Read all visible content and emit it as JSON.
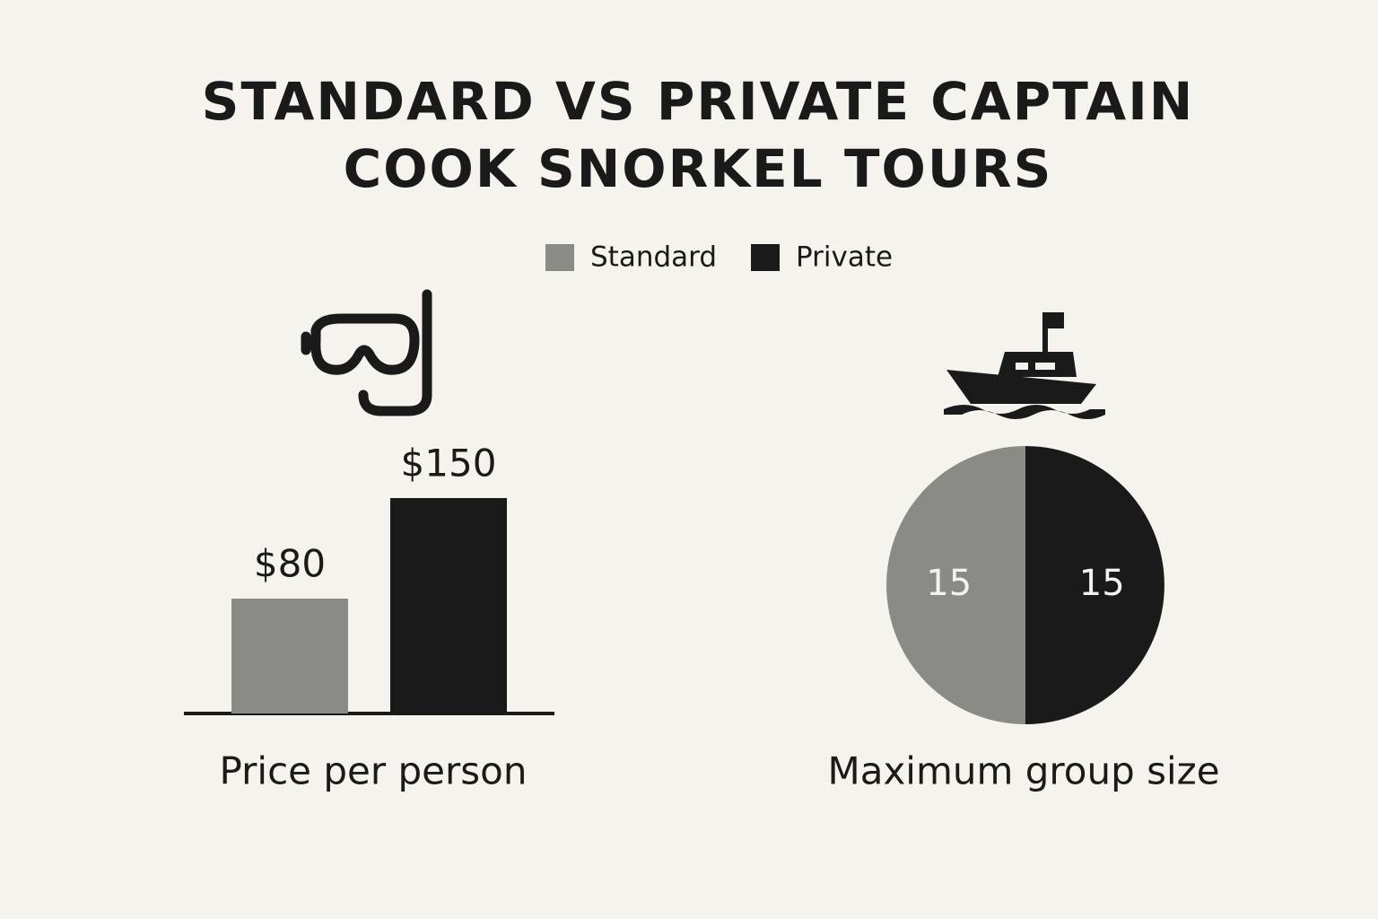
{
  "title_lines": [
    "STANDARD VS PRIVATE CAPTAIN",
    "COOK SNORKEL TOURS"
  ],
  "chart_data": [
    {
      "type": "bar",
      "xlabel": "Price per person",
      "series": [
        {
          "name": "Standard",
          "color": "#8a8a87",
          "values": [
            80
          ],
          "value_labels": [
            "$80"
          ]
        },
        {
          "name": "Private",
          "color": "#1a1a1a",
          "values": [
            150
          ],
          "value_labels": [
            "$150"
          ]
        }
      ]
    },
    {
      "type": "pie",
      "xlabel": "Maximum group size",
      "values": [
        15,
        15
      ],
      "colors": [
        "#8a8a87",
        "#1a1a1a"
      ]
    }
  ]
}
